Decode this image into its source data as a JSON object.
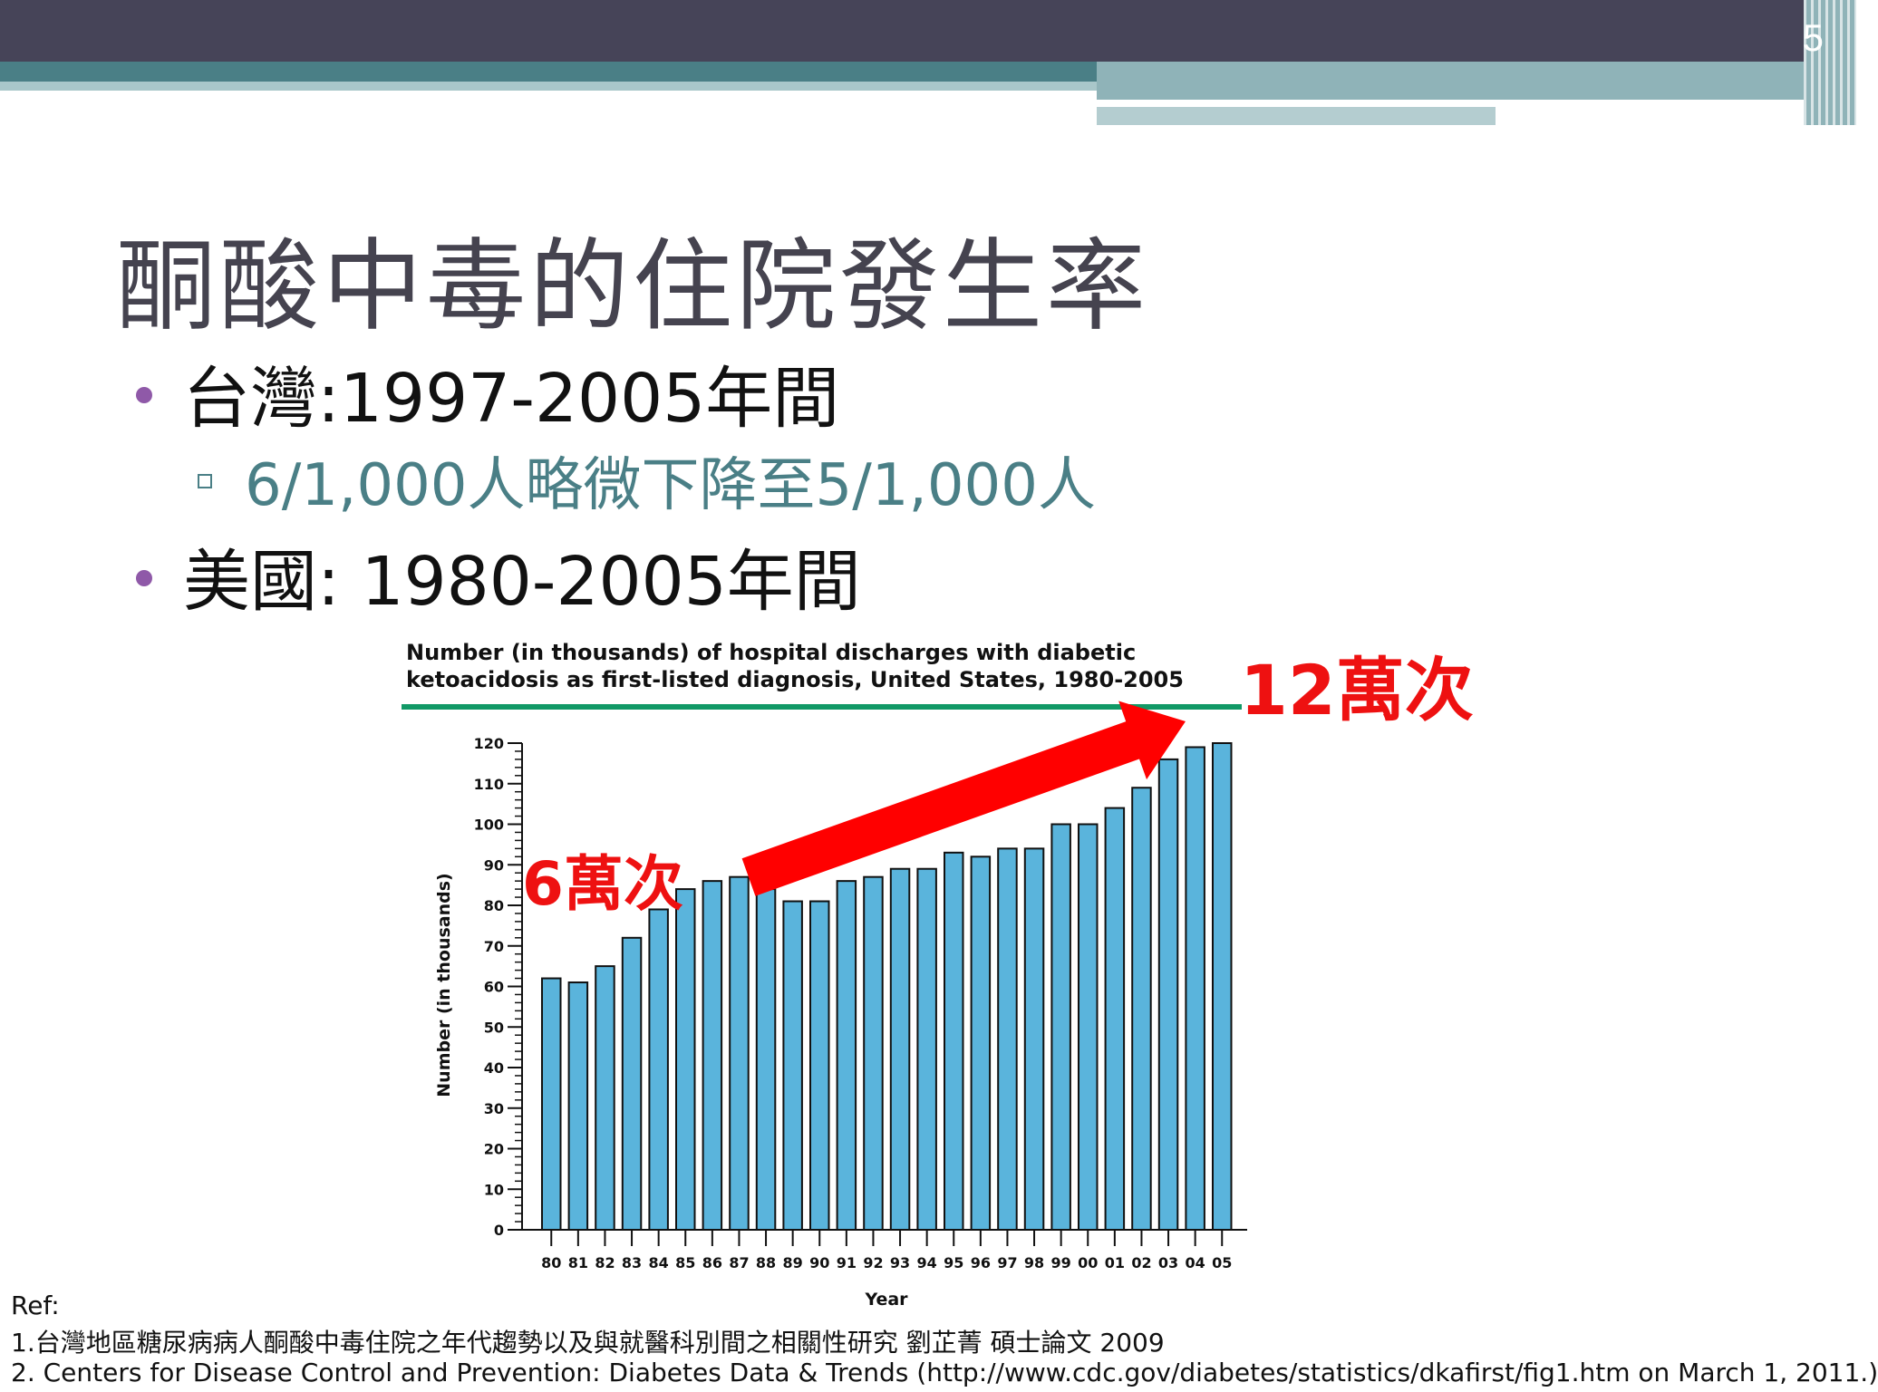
{
  "slide_number": "5",
  "title": "酮酸中毒的住院發生率",
  "bullets": {
    "taiwan": "台灣:1997-2005年間",
    "taiwan_sub": "6/1,000人略微下降至5/1,000人",
    "usa": "美國: 1980-2005年間"
  },
  "annotations": {
    "start": "6萬次",
    "end": "12萬次"
  },
  "chart_data": {
    "type": "bar",
    "title_line1": "Number (in thousands) of hospital discharges with diabetic",
    "title_line2": "ketoacidosis as first-listed diagnosis, United States, 1980-2005",
    "xlabel": "Year",
    "ylabel": "Number (in thousands)",
    "ylim": [
      0,
      120
    ],
    "yticks": [
      0,
      10,
      20,
      30,
      40,
      50,
      60,
      70,
      80,
      90,
      100,
      110,
      120
    ],
    "categories": [
      "80",
      "81",
      "82",
      "83",
      "84",
      "85",
      "86",
      "87",
      "88",
      "89",
      "90",
      "91",
      "92",
      "93",
      "94",
      "95",
      "96",
      "97",
      "98",
      "99",
      "00",
      "01",
      "02",
      "03",
      "04",
      "05"
    ],
    "values": [
      62,
      61,
      65,
      72,
      79,
      84,
      86,
      87,
      84,
      81,
      81,
      86,
      87,
      89,
      89,
      93,
      92,
      94,
      94,
      100,
      100,
      104,
      109,
      116,
      119,
      120
    ],
    "bar_color": "#5ab4dc",
    "title_rule_color": "#119966",
    "arrow_color": "#ff0000"
  },
  "references": {
    "label": "Ref:",
    "ref1": "1.台灣地區糖尿病病人酮酸中毒住院之年代趨勢以及與就醫科別間之相關性研究 劉芷菁 碩士論文 2009",
    "ref2": "2. Centers for Disease Control and Prevention: Diabetes Data & Trends (http://www.cdc.gov/diabetes/statistics/dkafirst/fig1.htm on March 1, 2011.)"
  }
}
